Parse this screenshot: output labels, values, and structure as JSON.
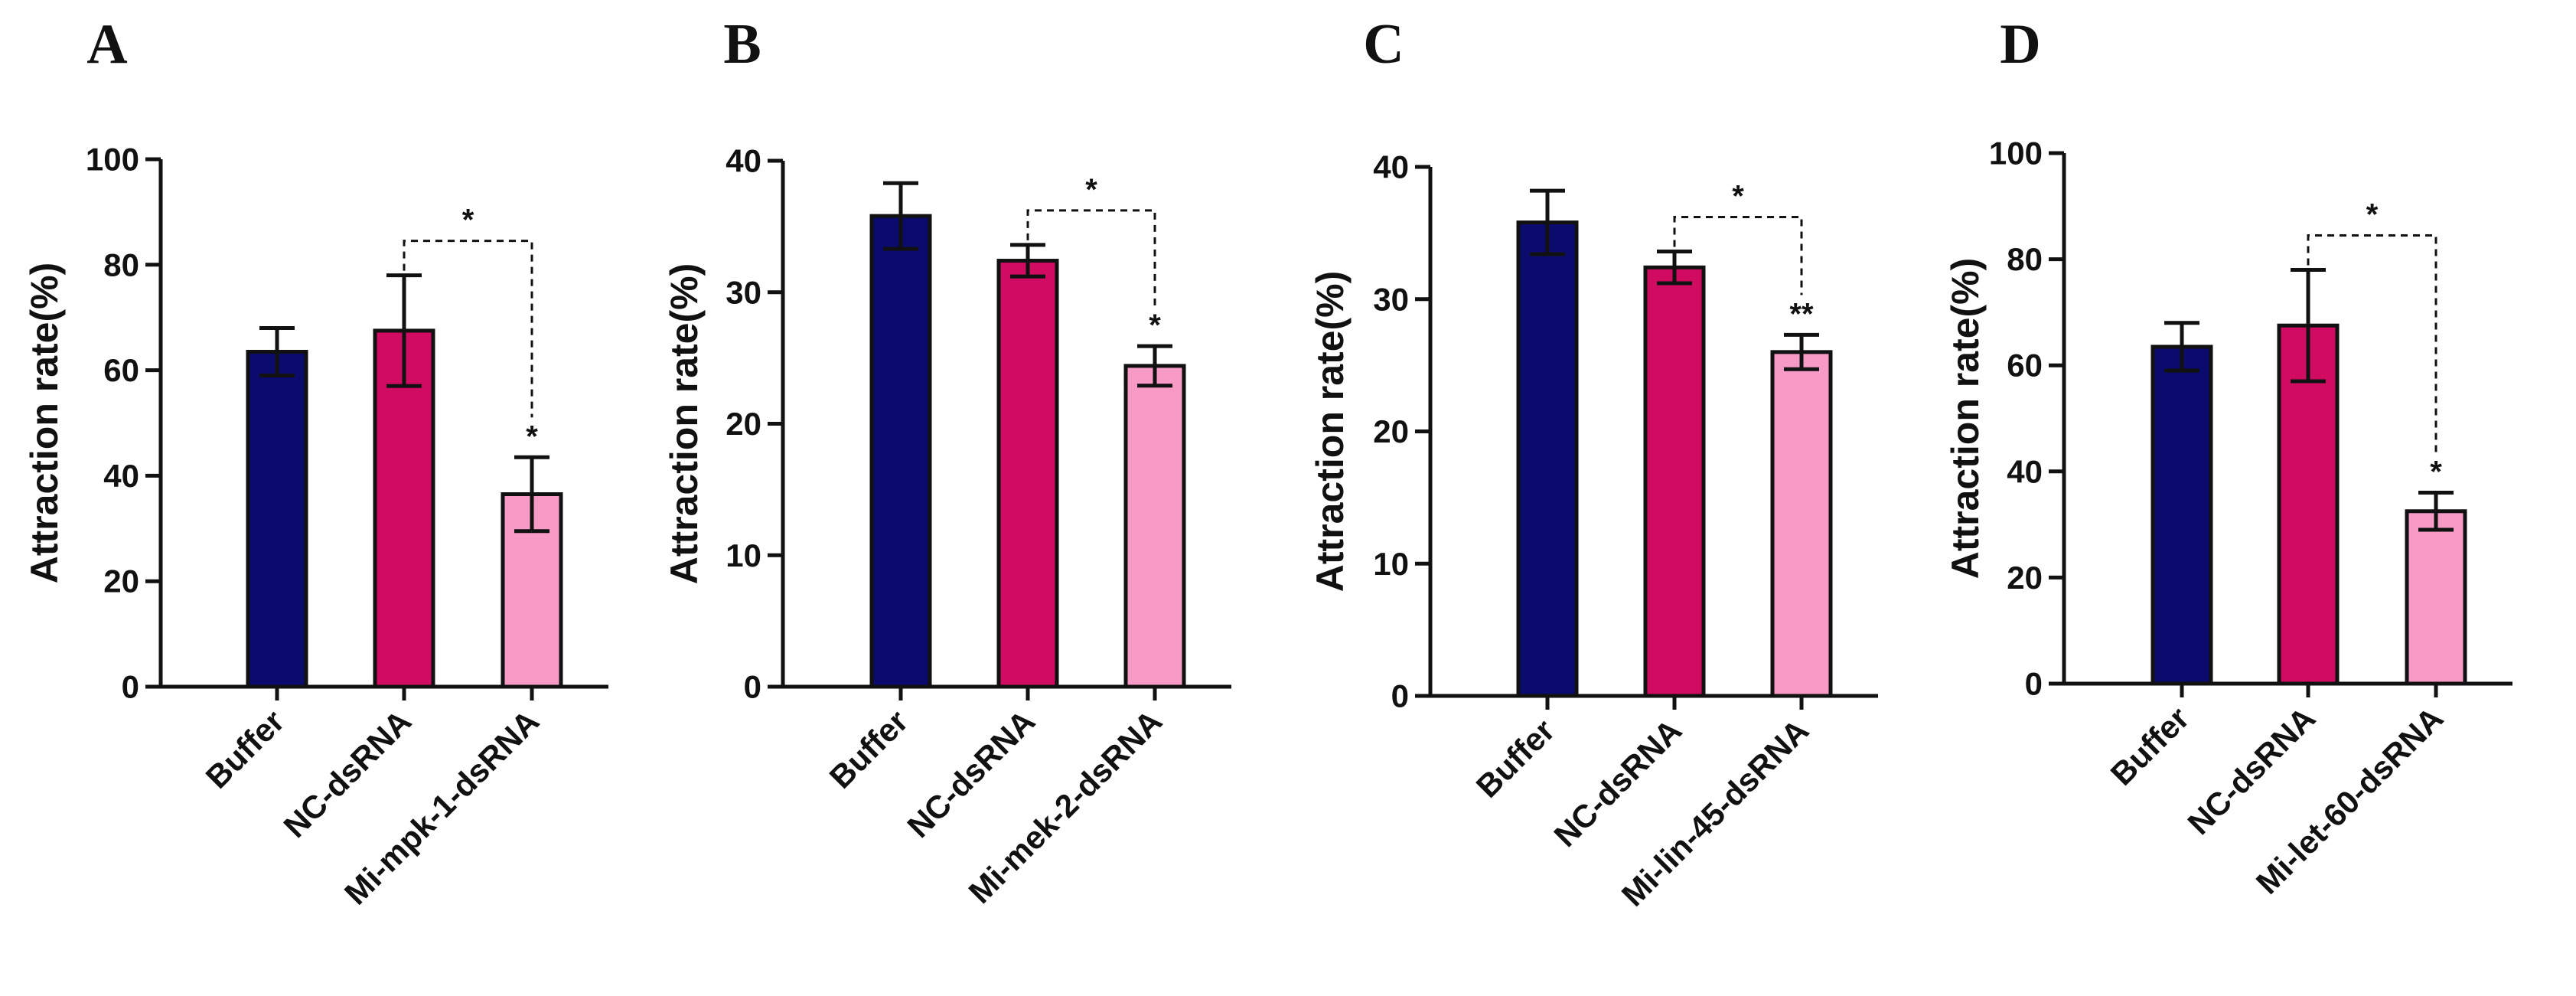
{
  "colors": {
    "Buffer": "#0b0b6e",
    "NC-dsRNA": "#d10a62",
    "treatment": "#f79ac6",
    "axis": "#111111"
  },
  "chart_data": [
    {
      "type": "bar",
      "panel": "A",
      "ylabel": "Attraction rate(%)",
      "ylim": [
        0,
        100
      ],
      "yticks": [
        0,
        20,
        40,
        60,
        80,
        100
      ],
      "categories": [
        "Buffer",
        "NC-dsRNA",
        "Mi-mpk-1-dsRNA"
      ],
      "values": [
        63.5,
        67.5,
        36.5
      ],
      "errors": [
        4.5,
        10.5,
        7
      ],
      "bar_colors": [
        "#0b0b6e",
        "#d10a62",
        "#f79ac6"
      ],
      "bar_significance": [
        "",
        "",
        "*"
      ],
      "comparison": {
        "from": 1,
        "to": 2,
        "label": "*"
      }
    },
    {
      "type": "bar",
      "panel": "B",
      "ylabel": "Attraction rate(%)",
      "ylim": [
        0,
        40
      ],
      "yticks": [
        0,
        10,
        20,
        30,
        40
      ],
      "categories": [
        "Buffer",
        "NC-dsRNA",
        "Mi-mek-2-dsRNA"
      ],
      "values": [
        35.8,
        32.4,
        24.4
      ],
      "errors": [
        2.5,
        1.2,
        1.5
      ],
      "bar_colors": [
        "#0b0b6e",
        "#d10a62",
        "#f79ac6"
      ],
      "bar_significance": [
        "",
        "",
        "*"
      ],
      "comparison": {
        "from": 1,
        "to": 2,
        "label": "*"
      }
    },
    {
      "type": "bar",
      "panel": "C",
      "ylabel": "Attraction rate(%)",
      "ylim": [
        0,
        40
      ],
      "yticks": [
        0,
        10,
        20,
        30,
        40
      ],
      "categories": [
        "Buffer",
        "NC-dsRNA",
        "Mi-lin-45-dsRNA"
      ],
      "values": [
        35.8,
        32.4,
        26.0
      ],
      "errors": [
        2.4,
        1.2,
        1.3
      ],
      "bar_colors": [
        "#0b0b6e",
        "#d10a62",
        "#f79ac6"
      ],
      "bar_significance": [
        "",
        "",
        "**"
      ],
      "comparison": {
        "from": 1,
        "to": 2,
        "label": "*"
      }
    },
    {
      "type": "bar",
      "panel": "D",
      "ylabel": "Attraction rate(%)",
      "ylim": [
        0,
        100
      ],
      "yticks": [
        0,
        20,
        40,
        60,
        80,
        100
      ],
      "categories": [
        "Buffer",
        "NC-dsRNA",
        "Mi-let-60-dsRNA"
      ],
      "values": [
        63.5,
        67.5,
        32.5
      ],
      "errors": [
        4.5,
        10.5,
        3.5
      ],
      "bar_colors": [
        "#0b0b6e",
        "#d10a62",
        "#f79ac6"
      ],
      "bar_significance": [
        "",
        "",
        "*"
      ],
      "comparison": {
        "from": 1,
        "to": 2,
        "label": "*"
      }
    }
  ]
}
